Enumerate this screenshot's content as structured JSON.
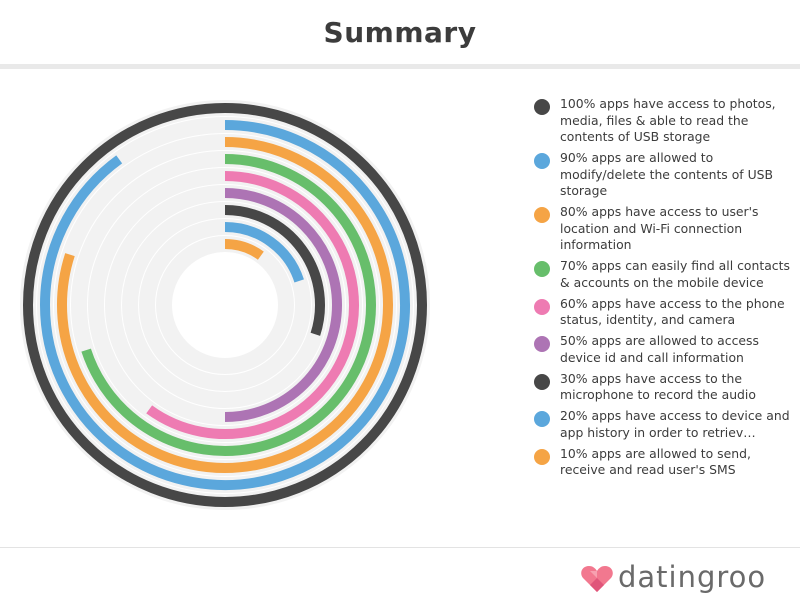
{
  "header": {
    "title": "Summary"
  },
  "colors": {
    "ring_background": "#f2f2f2",
    "outer_ring": "#474747"
  },
  "chart_data": {
    "type": "radial-bar",
    "title": "Summary",
    "unit": "%",
    "max": 100,
    "series": [
      {
        "value": 100,
        "label": "100% apps have access to photos, media, files & able to read the contents of USB storage",
        "color": "#474747"
      },
      {
        "value": 90,
        "label": "90% apps are allowed to modify/delete the contents of USB storage",
        "color": "#5ba7dc"
      },
      {
        "value": 80,
        "label": "80% apps have access to user's location and Wi-Fi connection information",
        "color": "#f5a445"
      },
      {
        "value": 70,
        "label": "70% apps can easily find all contacts & accounts on the mobile device",
        "color": "#67be6b"
      },
      {
        "value": 60,
        "label": "60% apps have access to the phone status, identity, and camera",
        "color": "#ee7bb2"
      },
      {
        "value": 50,
        "label": "50% apps are allowed to access device id and call information",
        "color": "#ad74b4"
      },
      {
        "value": 30,
        "label": "30% apps have access to the microphone to record the audio",
        "color": "#474747"
      },
      {
        "value": 20,
        "label": "20% apps have access to device and app history in order to retriev…",
        "color": "#5ba7dc"
      },
      {
        "value": 10,
        "label": "10% apps are allowed to send, receive and read user's SMS",
        "color": "#f5a445"
      }
    ]
  },
  "brand": {
    "name": "datingroo",
    "logo": "heart-logo-icon"
  }
}
